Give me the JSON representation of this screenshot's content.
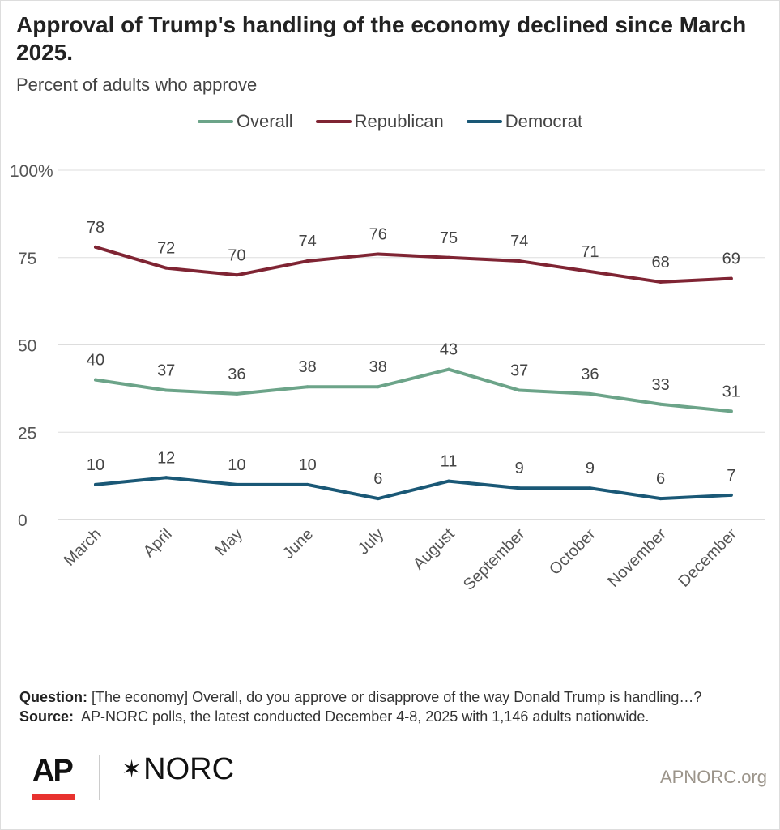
{
  "title": "Approval of Trump's handling of the economy declined since March 2025.",
  "subtitle": "Percent of adults who approve",
  "chart_data": {
    "type": "line",
    "title": "Approval of Trump's handling of the economy declined since March 2025.",
    "subtitle": "Percent of adults who approve",
    "categories": [
      "March",
      "April",
      "May",
      "June",
      "July",
      "August",
      "September",
      "October",
      "November",
      "December"
    ],
    "series": [
      {
        "name": "Overall",
        "color": "#6ca489",
        "values": [
          40,
          37,
          36,
          38,
          38,
          43,
          37,
          36,
          33,
          31
        ]
      },
      {
        "name": "Republican",
        "color": "#7f2433",
        "values": [
          78,
          72,
          70,
          74,
          76,
          75,
          74,
          71,
          68,
          69
        ]
      },
      {
        "name": "Democrat",
        "color": "#1a5876",
        "values": [
          10,
          12,
          10,
          10,
          6,
          11,
          9,
          9,
          6,
          7
        ]
      }
    ],
    "yticks": [
      "0",
      "25",
      "50",
      "75",
      "100%"
    ],
    "ytick_values": [
      0,
      25,
      50,
      75,
      100
    ],
    "ylim": [
      0,
      100
    ],
    "grid": true,
    "legend": "top-center",
    "xlabel": "",
    "ylabel": ""
  },
  "notes": {
    "question_label": "Question:",
    "question": "[The economy] Overall, do you approve or disapprove of the way Donald Trump is handling…?",
    "source_label": "Source:",
    "source": "AP-NORC polls, the latest conducted December 4-8, 2025 with 1,146 adults nationwide."
  },
  "footer": {
    "ap_logo": "AP",
    "norc_logo": "NORC",
    "norc_star": "✶",
    "site": "APNORC.org"
  }
}
